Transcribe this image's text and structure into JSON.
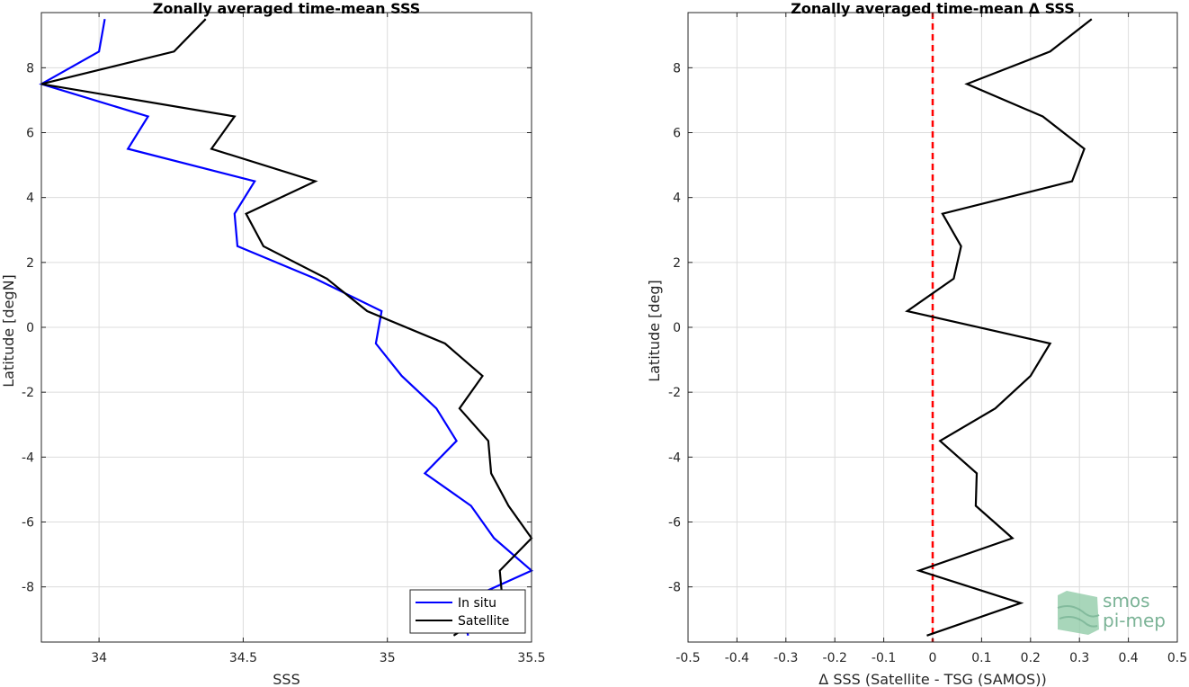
{
  "chart_data": [
    {
      "type": "line",
      "title": "Zonally averaged time-mean SSS",
      "xlabel": "SSS",
      "ylabel": "Latitude [degN]",
      "xlim": [
        33.8,
        35.5
      ],
      "ylim": [
        -9.7,
        9.7
      ],
      "xticks": [
        34,
        34.5,
        35,
        35.5
      ],
      "xtick_labels": [
        "34",
        "34.5",
        "35",
        "35.5"
      ],
      "yticks": [
        -8,
        -6,
        -4,
        -2,
        0,
        2,
        4,
        6,
        8
      ],
      "ytick_labels": [
        "-8",
        "-6",
        "-4",
        "-2",
        "0",
        "2",
        "4",
        "6",
        "8"
      ],
      "grid": true,
      "legend_location": "bottom-right",
      "series": [
        {
          "name": "In situ",
          "color": "#0000ff",
          "points": [
            [
              34.02,
              9.5
            ],
            [
              34.0,
              8.5
            ],
            [
              33.8,
              7.5
            ],
            [
              34.17,
              6.5
            ],
            [
              34.1,
              5.5
            ],
            [
              34.54,
              4.5
            ],
            [
              34.47,
              3.5
            ],
            [
              34.48,
              2.5
            ],
            [
              34.75,
              1.5
            ],
            [
              34.98,
              0.5
            ],
            [
              34.96,
              -0.5
            ],
            [
              35.05,
              -1.5
            ],
            [
              35.17,
              -2.5
            ],
            [
              35.24,
              -3.5
            ],
            [
              35.13,
              -4.5
            ],
            [
              35.29,
              -5.5
            ],
            [
              35.37,
              -6.5
            ],
            [
              35.5,
              -7.5
            ],
            [
              35.25,
              -8.5
            ],
            [
              35.28,
              -9.5
            ]
          ]
        },
        {
          "name": "Satellite",
          "color": "#000000",
          "points": [
            [
              34.37,
              9.5
            ],
            [
              34.26,
              8.5
            ],
            [
              33.8,
              7.5
            ],
            [
              34.47,
              6.5
            ],
            [
              34.39,
              5.5
            ],
            [
              34.75,
              4.5
            ],
            [
              34.51,
              3.5
            ],
            [
              34.57,
              2.5
            ],
            [
              34.79,
              1.5
            ],
            [
              34.93,
              0.5
            ],
            [
              35.2,
              -0.5
            ],
            [
              35.33,
              -1.5
            ],
            [
              35.25,
              -2.5
            ],
            [
              35.35,
              -3.5
            ],
            [
              35.36,
              -4.5
            ],
            [
              35.42,
              -5.5
            ],
            [
              35.5,
              -6.5
            ],
            [
              35.39,
              -7.5
            ],
            [
              35.4,
              -8.5
            ],
            [
              35.23,
              -9.5
            ]
          ]
        }
      ]
    },
    {
      "type": "line",
      "title": "Zonally averaged time-mean Δ SSS",
      "xlabel": "Δ SSS (Satellite - TSG (SAMOS))",
      "ylabel": "Latitude [deg]",
      "xlim": [
        -0.5,
        0.5
      ],
      "ylim": [
        -9.7,
        9.7
      ],
      "xticks": [
        -0.5,
        -0.4,
        -0.3,
        -0.2,
        -0.1,
        0,
        0.1,
        0.2,
        0.3,
        0.4,
        0.5
      ],
      "xtick_labels": [
        "-0.5",
        "-0.4",
        "-0.3",
        "-0.2",
        "-0.1",
        "0",
        "0.1",
        "0.2",
        "0.3",
        "0.4",
        "0.5"
      ],
      "yticks": [
        -8,
        -6,
        -4,
        -2,
        0,
        2,
        4,
        6,
        8
      ],
      "ytick_labels": [
        "-8",
        "-6",
        "-4",
        "-2",
        "0",
        "2",
        "4",
        "6",
        "8"
      ],
      "grid": true,
      "reference_line": {
        "x": 0,
        "color": "#ff0000",
        "style": "dashed"
      },
      "series": [
        {
          "name": "",
          "color": "#000000",
          "points": [
            [
              0.325,
              9.5
            ],
            [
              0.24,
              8.5
            ],
            [
              0.07,
              7.5
            ],
            [
              0.225,
              6.5
            ],
            [
              0.31,
              5.5
            ],
            [
              0.285,
              4.5
            ],
            [
              0.02,
              3.5
            ],
            [
              0.058,
              2.5
            ],
            [
              0.043,
              1.5
            ],
            [
              -0.052,
              0.5
            ],
            [
              0.24,
              -0.5
            ],
            [
              0.2,
              -1.5
            ],
            [
              0.128,
              -2.5
            ],
            [
              0.015,
              -3.5
            ],
            [
              0.09,
              -4.5
            ],
            [
              0.088,
              -5.5
            ],
            [
              0.163,
              -6.5
            ],
            [
              -0.028,
              -7.5
            ],
            [
              0.18,
              -8.5
            ],
            [
              -0.012,
              -9.5
            ]
          ]
        }
      ]
    }
  ],
  "logo": {
    "line1": "smos",
    "line2": "pi-mep"
  }
}
